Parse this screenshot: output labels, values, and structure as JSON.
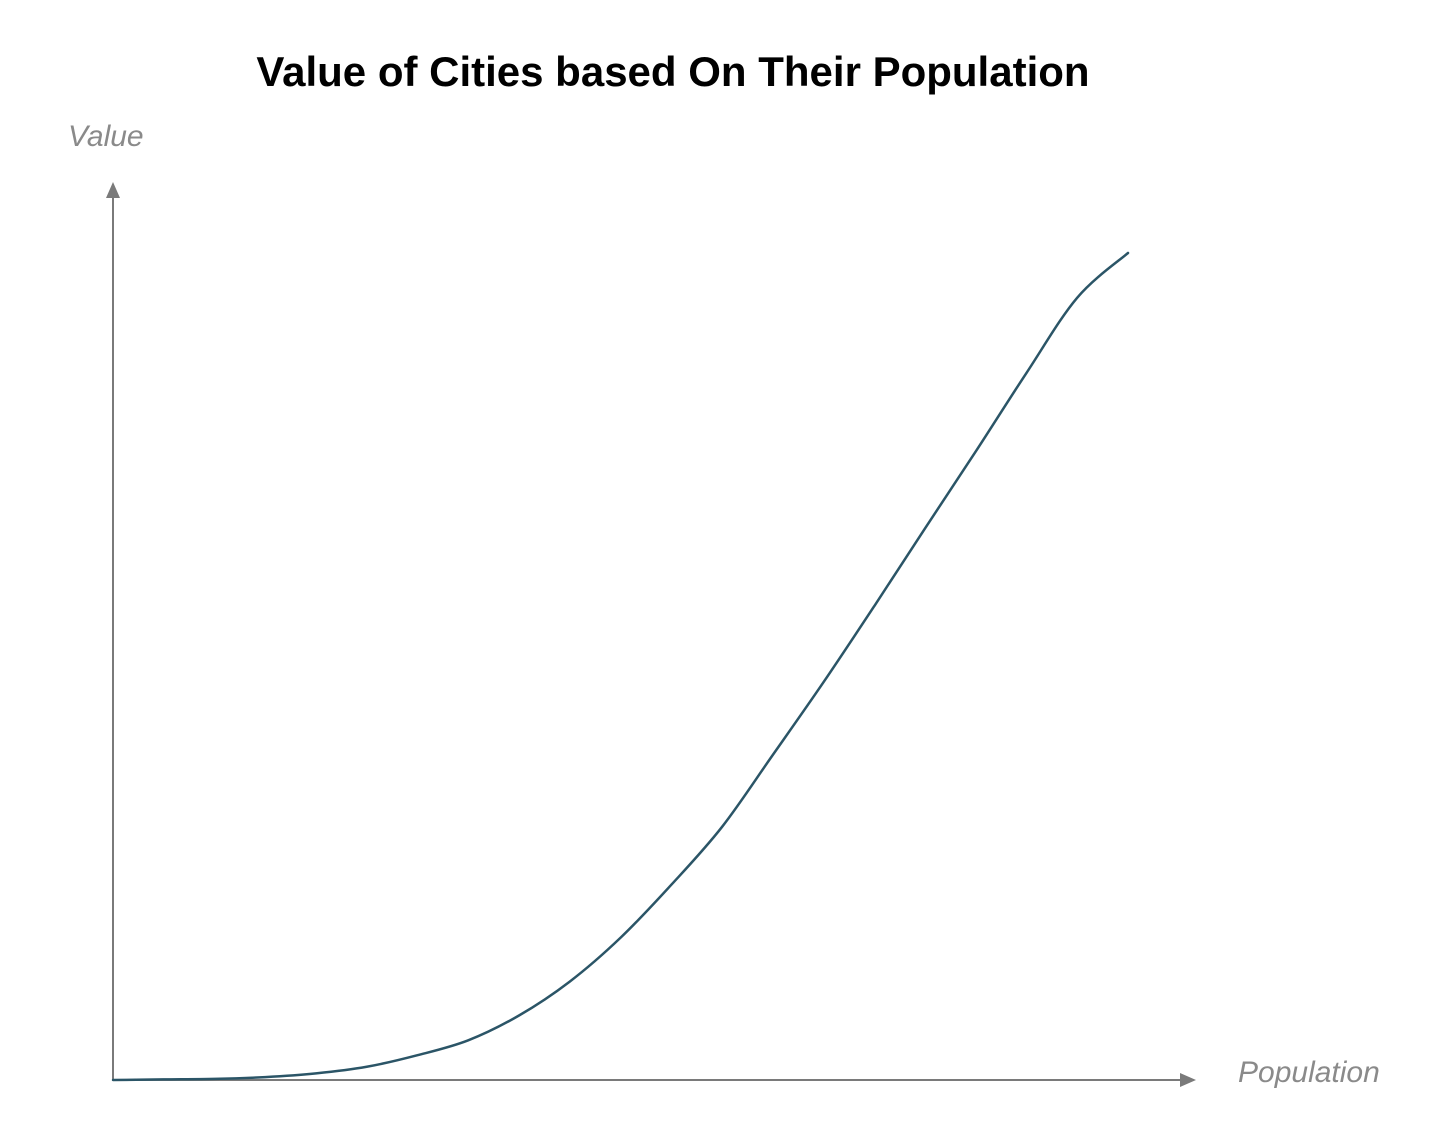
{
  "chart_data": {
    "type": "line",
    "title": "Value of Cities based On Their Population",
    "xlabel": "Population",
    "ylabel": "Value",
    "grid": false,
    "ticks": "none",
    "xlim": [
      0,
      1
    ],
    "ylim": [
      0,
      1
    ],
    "series": [
      {
        "color": "#2b5567",
        "x": [
          0,
          0.05,
          0.1,
          0.15,
          0.2,
          0.25,
          0.3,
          0.35,
          0.4,
          0.45,
          0.5,
          0.55,
          0.6,
          0.65,
          0.7,
          0.75,
          0.8,
          0.85,
          0.9,
          0.95,
          1.0
        ],
        "y": [
          0,
          0.0007,
          0.0013,
          0.0035,
          0.008,
          0.016,
          0.03,
          0.048,
          0.078,
          0.119,
          0.172,
          0.236,
          0.306,
          0.393,
          0.481,
          0.573,
          0.667,
          0.76,
          0.855,
          0.946,
          1.0
        ]
      }
    ]
  }
}
